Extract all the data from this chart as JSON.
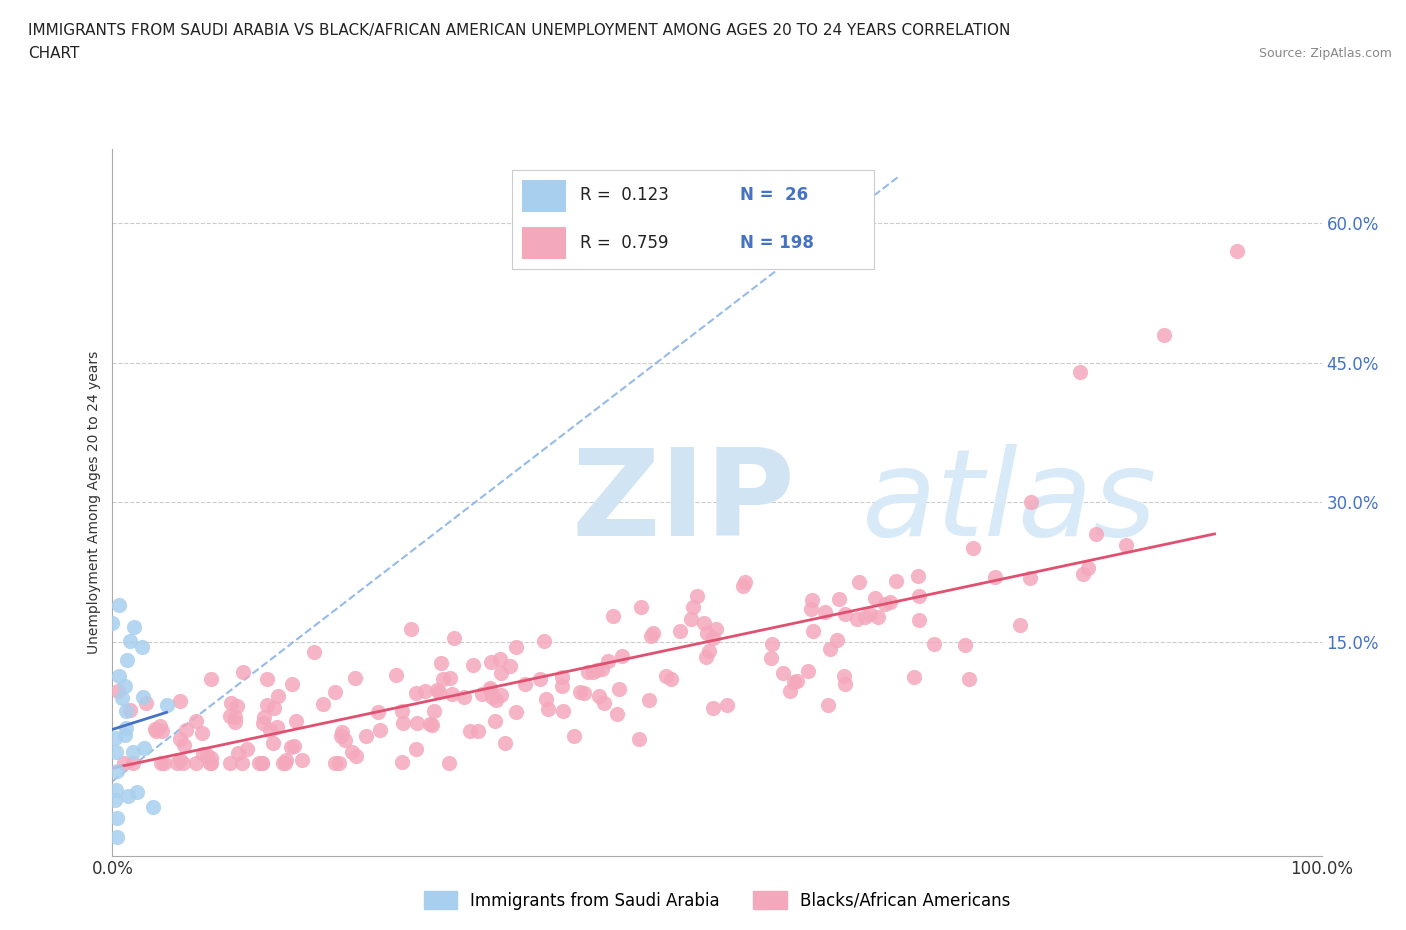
{
  "title_line1": "IMMIGRANTS FROM SAUDI ARABIA VS BLACK/AFRICAN AMERICAN UNEMPLOYMENT AMONG AGES 20 TO 24 YEARS CORRELATION",
  "title_line2": "CHART",
  "source": "Source: ZipAtlas.com",
  "ylabel": "Unemployment Among Ages 20 to 24 years",
  "legend_r1": "R =  0.123",
  "legend_n1": "N =  26",
  "legend_r2": "R =  0.759",
  "legend_n2": "N = 198",
  "series1_label": "Immigrants from Saudi Arabia",
  "series2_label": "Blacks/African Americans",
  "color1": "#a8cfee",
  "color2": "#f4a8bc",
  "trendline1_color": "#4472c4",
  "trendline2_color": "#e05070",
  "refline_color": "#8ab4e8",
  "watermark_zip_color": "#d0e4f4",
  "watermark_atlas_color": "#d8eaf8",
  "background_color": "#ffffff",
  "xlim": [
    0.0,
    1.0
  ],
  "ylim": [
    -0.08,
    0.68
  ],
  "ytick_positions": [
    0.15,
    0.3,
    0.45,
    0.6
  ],
  "ytick_labels": [
    "15.0%",
    "30.0%",
    "45.0%",
    "60.0%"
  ],
  "blue_dot_color_text": "#4472c4",
  "marker_size": 120,
  "marker_linewidth": 1.5
}
